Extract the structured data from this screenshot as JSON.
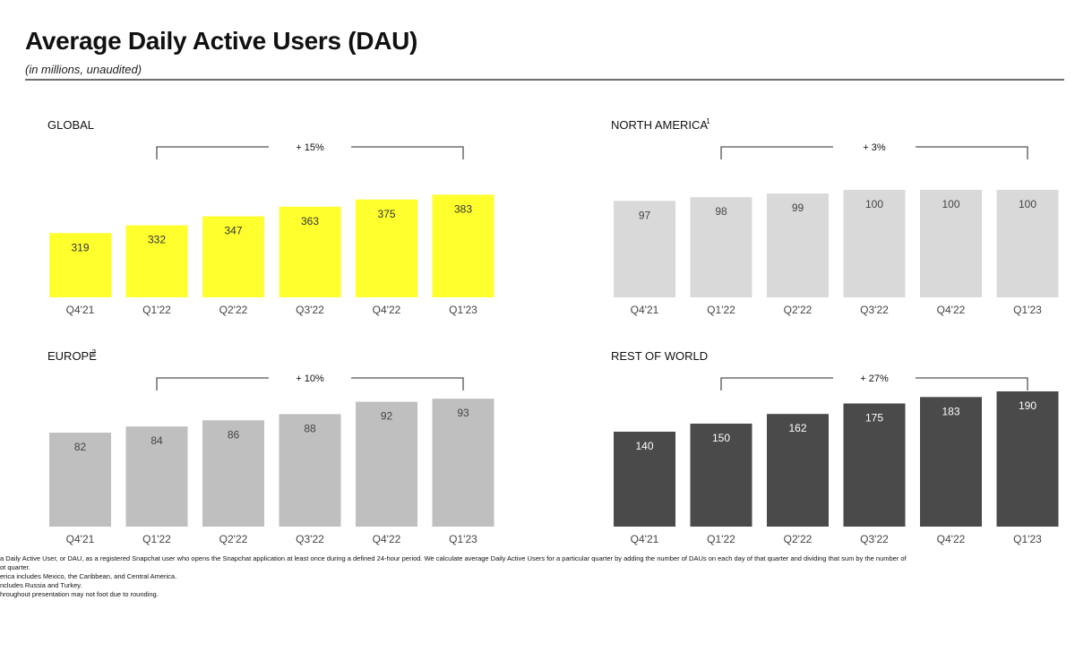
{
  "header": {
    "title": "Average Daily Active Users (DAU)",
    "subtitle": "(in millions, unaudited)"
  },
  "chart_data": [
    {
      "type": "bar",
      "title": "GLOBAL",
      "footnote_mark": "",
      "categories": [
        "Q4'21",
        "Q1'22",
        "Q2'22",
        "Q3'22",
        "Q4'22",
        "Q1'23"
      ],
      "values": [
        319,
        332,
        347,
        363,
        375,
        383
      ],
      "growth_label": "+ 15%",
      "bar_color": "#ffff2e",
      "label_color": "#333333"
    },
    {
      "type": "bar",
      "title": "NORTH AMERICA",
      "footnote_mark": "1",
      "categories": [
        "Q4'21",
        "Q1'22",
        "Q2'22",
        "Q3'22",
        "Q4'22",
        "Q1'23"
      ],
      "values": [
        97,
        98,
        99,
        100,
        100,
        100
      ],
      "growth_label": "+ 3%",
      "bar_color": "#d9d9d9",
      "label_color": "#444444"
    },
    {
      "type": "bar",
      "title": "EUROPE",
      "footnote_mark": "2",
      "categories": [
        "Q4'21",
        "Q1'22",
        "Q2'22",
        "Q3'22",
        "Q4'22",
        "Q1'23"
      ],
      "values": [
        82,
        84,
        86,
        88,
        92,
        93
      ],
      "growth_label": "+ 10%",
      "bar_color": "#bfbfbf",
      "label_color": "#444444"
    },
    {
      "type": "bar",
      "title": "REST OF WORLD",
      "footnote_mark": "",
      "categories": [
        "Q4'21",
        "Q1'22",
        "Q2'22",
        "Q3'22",
        "Q4'22",
        "Q1'23"
      ],
      "values": [
        140,
        150,
        162,
        175,
        183,
        190
      ],
      "growth_label": "+ 27%",
      "bar_color": "#4a4a4a",
      "label_color": "#ffffff"
    }
  ],
  "footnotes": [
    "a Daily Active User, or DAU, as a registered Snapchat user who opens the Snapchat application at least once during a defined 24-hour period. We calculate average Daily Active Users for a particular quarter by adding the number of DAUs on each day of that quarter and dividing that sum by the number of",
    "ot quarter.",
    "erica includes Mexico, the Caribbean, and Central America.",
    "ncludes Russia and Turkey.",
    "hroughout presentation may not foot due to rounding."
  ]
}
